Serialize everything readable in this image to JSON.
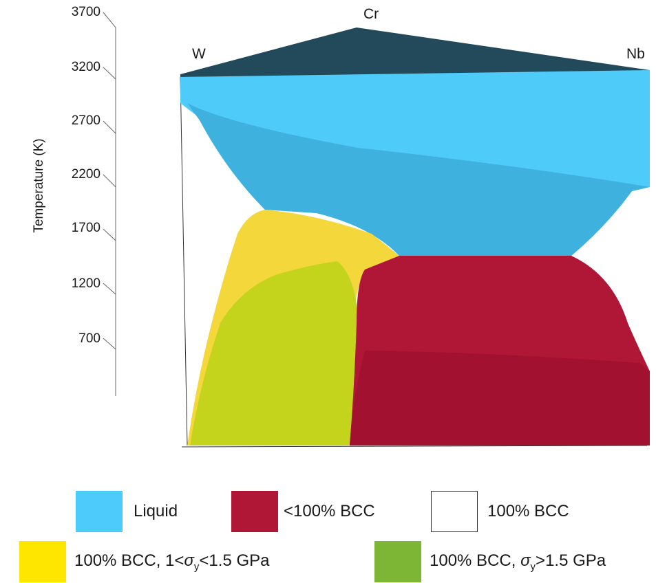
{
  "axis": {
    "label": "Temperature (K)",
    "ticks": [
      "3700",
      "3200",
      "2700",
      "2200",
      "1700",
      "1200",
      "700"
    ]
  },
  "vertices": {
    "left": "W",
    "apex": "Cr",
    "right": "Nb"
  },
  "legend": [
    {
      "id": "liquid",
      "label": "Liquid",
      "color": "#4dcbfb"
    },
    {
      "id": "partial",
      "label": "<100% BCC",
      "color": "#b01636"
    },
    {
      "id": "full",
      "label": "100% BCC",
      "color": "#ffffff"
    },
    {
      "id": "yield-mid",
      "prefix": "100% BCC, 1<",
      "sigma": "σ",
      "sub": "y",
      "suffix": "<1.5 GPa",
      "color": "#ffe600"
    },
    {
      "id": "yield-high",
      "prefix": "100% BCC, ",
      "sigma": "σ",
      "sub": "y",
      "suffix": ">1.5 GPa",
      "color": "#7db535"
    }
  ]
}
